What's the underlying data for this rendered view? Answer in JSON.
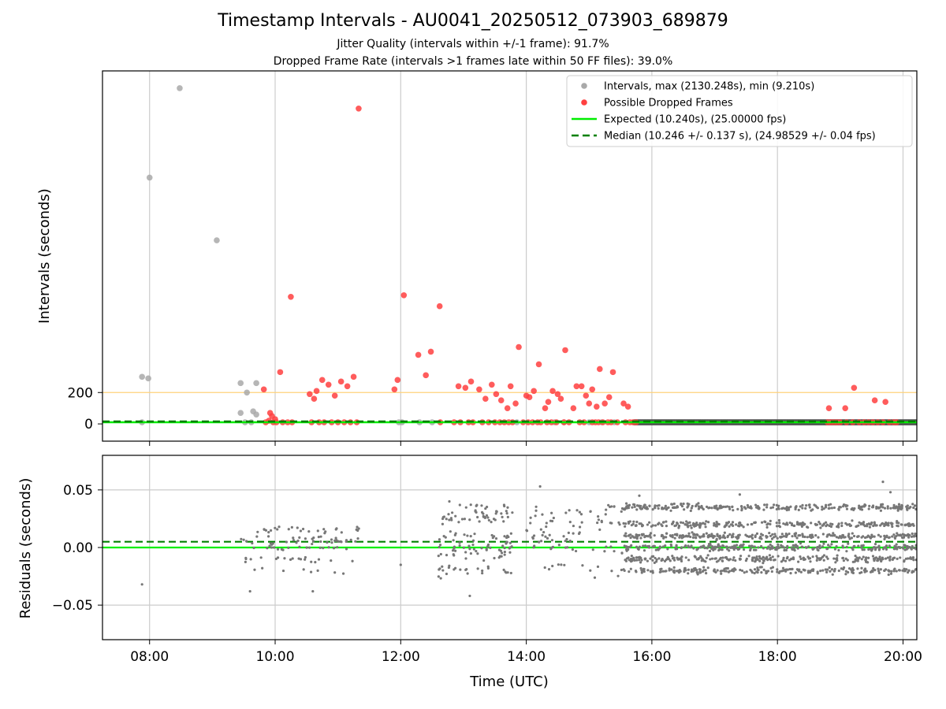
{
  "figure": {
    "title": "Timestamp Intervals - AU0041_20250512_073903_689879",
    "subtitle_1": "Jitter Quality (intervals within +/-1 frame): 91.7%",
    "subtitle_2": "Dropped Frame Rate (intervals >1 frames late within 50 FF files): 39.0%"
  },
  "colors": {
    "intervals": "#a9a9a9",
    "dropped": "#ff4040",
    "expected": "#00ee00",
    "median": "#008000",
    "threshold": "#ffd27a",
    "residuals": "#777777",
    "grid": "#cccccc"
  },
  "chart_data": [
    {
      "type": "scatter",
      "panel": "intervals",
      "title": "",
      "xlabel": "",
      "ylabel": "Intervals (seconds)",
      "xlim": [
        7.25,
        20.22
      ],
      "ylim": [
        -110,
        2250
      ],
      "yticks": [
        0,
        200
      ],
      "xticks": [
        8,
        10,
        12,
        14,
        16,
        18,
        20
      ],
      "grid": "x",
      "legend_position": "top-right",
      "threshold_line": {
        "y": 200
      },
      "series": [
        {
          "name": "Intervals, max (2130.248s), min (9.210s)",
          "kind": "scatter",
          "color": "#a9a9a9",
          "points": [
            [
              7.88,
              10
            ],
            [
              7.88,
              300
            ],
            [
              7.98,
              290
            ],
            [
              8.0,
              1570
            ],
            [
              8.48,
              2140
            ],
            [
              9.07,
              1170
            ],
            [
              9.45,
              260
            ],
            [
              9.45,
              70
            ],
            [
              9.52,
              10
            ],
            [
              9.55,
              200
            ],
            [
              9.62,
              10
            ],
            [
              9.65,
              80
            ],
            [
              9.7,
              60
            ],
            [
              9.7,
              260
            ],
            [
              11.97,
              10
            ],
            [
              12.02,
              10
            ],
            [
              12.3,
              10
            ],
            [
              12.5,
              10
            ],
            [
              13.85,
              10
            ],
            [
              14.45,
              10
            ],
            [
              14.6,
              10
            ],
            [
              15.0,
              10
            ],
            [
              15.2,
              10
            ],
            [
              15.4,
              10
            ]
          ]
        },
        {
          "name": "Possible Dropped Frames",
          "kind": "scatter",
          "color": "#ff4040",
          "points": [
            [
              9.82,
              220
            ],
            [
              9.85,
              10
            ],
            [
              9.9,
              20
            ],
            [
              9.92,
              70
            ],
            [
              9.95,
              50
            ],
            [
              9.97,
              10
            ],
            [
              10.0,
              30
            ],
            [
              10.02,
              10
            ],
            [
              10.08,
              330
            ],
            [
              10.12,
              10
            ],
            [
              10.2,
              10
            ],
            [
              10.25,
              810
            ],
            [
              10.27,
              10
            ],
            [
              10.55,
              190
            ],
            [
              10.58,
              10
            ],
            [
              10.62,
              160
            ],
            [
              10.66,
              210
            ],
            [
              10.7,
              10
            ],
            [
              10.75,
              280
            ],
            [
              10.78,
              10
            ],
            [
              10.85,
              250
            ],
            [
              10.9,
              10
            ],
            [
              10.95,
              180
            ],
            [
              11.0,
              10
            ],
            [
              11.05,
              270
            ],
            [
              11.1,
              10
            ],
            [
              11.15,
              240
            ],
            [
              11.2,
              10
            ],
            [
              11.25,
              300
            ],
            [
              11.3,
              10
            ],
            [
              11.33,
              2010
            ],
            [
              11.9,
              220
            ],
            [
              11.95,
              280
            ],
            [
              12.05,
              820
            ],
            [
              12.28,
              440
            ],
            [
              12.4,
              310
            ],
            [
              12.48,
              460
            ],
            [
              12.62,
              750
            ],
            [
              12.63,
              10
            ],
            [
              12.85,
              10
            ],
            [
              12.92,
              240
            ],
            [
              12.95,
              10
            ],
            [
              13.03,
              230
            ],
            [
              13.08,
              10
            ],
            [
              13.12,
              270
            ],
            [
              13.15,
              10
            ],
            [
              13.25,
              220
            ],
            [
              13.3,
              10
            ],
            [
              13.35,
              160
            ],
            [
              13.4,
              10
            ],
            [
              13.45,
              250
            ],
            [
              13.5,
              10
            ],
            [
              13.52,
              190
            ],
            [
              13.58,
              10
            ],
            [
              13.6,
              150
            ],
            [
              13.65,
              10
            ],
            [
              13.7,
              100
            ],
            [
              13.72,
              10
            ],
            [
              13.75,
              240
            ],
            [
              13.78,
              10
            ],
            [
              13.83,
              130
            ],
            [
              13.88,
              490
            ],
            [
              13.95,
              10
            ],
            [
              14.0,
              180
            ],
            [
              14.03,
              10
            ],
            [
              14.05,
              170
            ],
            [
              14.1,
              10
            ],
            [
              14.12,
              210
            ],
            [
              14.18,
              10
            ],
            [
              14.2,
              380
            ],
            [
              14.23,
              10
            ],
            [
              14.3,
              100
            ],
            [
              14.33,
              10
            ],
            [
              14.35,
              140
            ],
            [
              14.4,
              10
            ],
            [
              14.42,
              210
            ],
            [
              14.48,
              10
            ],
            [
              14.5,
              190
            ],
            [
              14.55,
              160
            ],
            [
              14.6,
              10
            ],
            [
              14.62,
              470
            ],
            [
              14.68,
              10
            ],
            [
              14.75,
              100
            ],
            [
              14.8,
              240
            ],
            [
              14.85,
              10
            ],
            [
              14.88,
              240
            ],
            [
              14.92,
              10
            ],
            [
              14.95,
              180
            ],
            [
              15.0,
              130
            ],
            [
              15.05,
              10
            ],
            [
              15.05,
              220
            ],
            [
              15.1,
              10
            ],
            [
              15.12,
              110
            ],
            [
              15.15,
              10
            ],
            [
              15.17,
              350
            ],
            [
              15.22,
              10
            ],
            [
              15.25,
              130
            ],
            [
              15.3,
              10
            ],
            [
              15.32,
              170
            ],
            [
              15.35,
              10
            ],
            [
              15.38,
              330
            ],
            [
              15.45,
              10
            ],
            [
              15.55,
              130
            ],
            [
              15.58,
              10
            ],
            [
              15.62,
              110
            ],
            [
              15.65,
              10
            ],
            [
              15.7,
              10
            ],
            [
              15.75,
              10
            ],
            [
              18.8,
              10
            ],
            [
              18.82,
              100
            ],
            [
              18.85,
              10
            ],
            [
              18.9,
              10
            ],
            [
              18.95,
              10
            ],
            [
              19.0,
              10
            ],
            [
              19.08,
              100
            ],
            [
              19.1,
              10
            ],
            [
              19.2,
              10
            ],
            [
              19.22,
              230
            ],
            [
              19.3,
              10
            ],
            [
              19.38,
              10
            ],
            [
              19.45,
              10
            ],
            [
              19.52,
              10
            ],
            [
              19.55,
              150
            ],
            [
              19.6,
              10
            ],
            [
              19.68,
              10
            ],
            [
              19.72,
              140
            ],
            [
              19.78,
              10
            ],
            [
              19.85,
              10
            ],
            [
              19.9,
              10
            ]
          ]
        },
        {
          "name": "Expected (10.240s), (25.00000 fps)",
          "kind": "hline",
          "style": "solid",
          "color": "#00ee00",
          "y": 10.24
        },
        {
          "name": "Median (10.246 +/- 0.137 s), (24.98529 +/- 0.04 fps)",
          "kind": "hline",
          "style": "dashed",
          "color": "#008000",
          "y": 10.246
        }
      ]
    },
    {
      "type": "scatter",
      "panel": "residuals",
      "title": "",
      "xlabel": "Time (UTC)",
      "ylabel": "Residuals (seconds)",
      "xlim": [
        7.25,
        20.22
      ],
      "ylim": [
        -0.08,
        0.08
      ],
      "yticks": [
        -0.05,
        0.0,
        0.05
      ],
      "ytick_labels": [
        "−0.05",
        "0.00",
        "0.05"
      ],
      "xticks": [
        8,
        10,
        12,
        14,
        16,
        18,
        20
      ],
      "xtick_labels": [
        "08:00",
        "10:00",
        "12:00",
        "14:00",
        "16:00",
        "18:00",
        "20:00"
      ],
      "grid": "both",
      "expected_line": {
        "y": 0.0
      },
      "median_line": {
        "y": 0.005
      },
      "sample_points": [
        [
          7.88,
          -0.032
        ],
        [
          9.6,
          -0.038
        ],
        [
          10.6,
          -0.038
        ],
        [
          12.0,
          -0.015
        ],
        [
          13.1,
          -0.042
        ],
        [
          14.22,
          0.053
        ],
        [
          19.68,
          0.057
        ],
        [
          19.8,
          0.048
        ],
        [
          17.4,
          0.046
        ],
        [
          15.8,
          0.045
        ]
      ],
      "clusters": [
        {
          "x": [
            9.45,
            11.35
          ],
          "n": 110,
          "base": [
            0.005,
            0.007,
            0.0,
            -0.02,
            0.015,
            -0.01
          ],
          "spread": 0.004
        },
        {
          "x": [
            12.6,
            13.78
          ],
          "n": 150,
          "base": [
            0.025,
            0.01,
            -0.005,
            -0.02,
            0.035,
            0.0
          ],
          "spread": 0.008
        },
        {
          "x": [
            14.0,
            14.9
          ],
          "n": 60,
          "base": [
            0.02,
            0.0,
            -0.015,
            0.03,
            0.01
          ],
          "spread": 0.01
        },
        {
          "x": [
            15.0,
            15.55
          ],
          "n": 35,
          "base": [
            0.02,
            0.0,
            -0.02,
            0.035
          ],
          "spread": 0.01
        },
        {
          "x": [
            15.55,
            20.22
          ],
          "n": 1500,
          "base": [
            0.02,
            0.0,
            -0.02,
            0.035,
            0.01,
            -0.01
          ],
          "spread": 0.004
        }
      ]
    }
  ]
}
